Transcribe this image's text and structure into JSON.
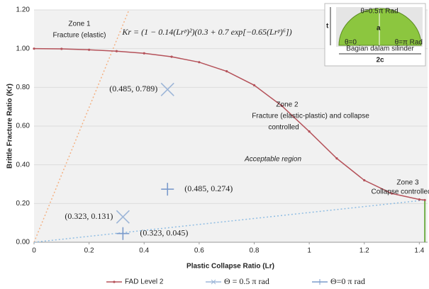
{
  "chart_data": {
    "type": "line",
    "xlabel": "Plastic Collapse Ratio (Lr)",
    "ylabel": "Brittle Fracture Ratio (Kr)",
    "formula": "Kr = (1 − 0.14(Lrᵖ)²)(0.3 + 0.7 exp[−0.65(Lrᵖ)⁶])",
    "xlim": [
      0,
      1.43
    ],
    "ylim": [
      0,
      1.2
    ],
    "xticks": [
      0,
      0.2,
      0.4,
      0.6,
      0.8,
      1,
      1.2,
      1.4
    ],
    "yticks": [
      {
        "value": 0,
        "label": "0.00"
      },
      {
        "value": 0.2,
        "label": "0.20"
      },
      {
        "value": 0.4,
        "label": "0.40"
      },
      {
        "value": 0.6,
        "label": "0.60"
      },
      {
        "value": 0.8,
        "label": "0.80"
      },
      {
        "value": 1,
        "label": "1.00"
      },
      {
        "value": 1.2,
        "label": "1.20"
      }
    ],
    "grid": true,
    "series": [
      {
        "name": "FAD Level 2",
        "color": "#b5525a",
        "marker": "dot",
        "x": [
          0,
          0.1,
          0.2,
          0.3,
          0.4,
          0.5,
          0.6,
          0.7,
          0.8,
          0.9,
          1,
          1.1,
          1.2,
          1.3,
          1.4,
          1.42
        ],
        "values": [
          1,
          0.999,
          0.994,
          0.987,
          0.976,
          0.958,
          0.93,
          0.883,
          0.811,
          0.705,
          0.572,
          0.433,
          0.32,
          0.252,
          0.221,
          0.218
        ]
      },
      {
        "name": "Θ = 0.5 π rad",
        "color": "#9db6d8",
        "marker": "x",
        "x": [
          0.485,
          0.323
        ],
        "values": [
          0.789,
          0.131
        ],
        "value_labels": [
          "(0.485, 0.789)",
          "(0.323, 0.131)"
        ]
      },
      {
        "name": "Θ=0 π rad",
        "color": "#7b9bcc",
        "marker": "plus",
        "x": [
          0.485,
          0.323
        ],
        "values": [
          0.274,
          0.045
        ],
        "value_labels": [
          "(0.485, 0.274)",
          "(0.323, 0.045)"
        ]
      }
    ],
    "reference_lines": [
      {
        "color": "#f4b183",
        "x": [
          0,
          0.345
        ],
        "values": [
          0,
          1.2
        ]
      },
      {
        "color": "#8fbde3",
        "x": [
          0,
          1.42
        ],
        "values": [
          0,
          0.218
        ]
      },
      {
        "color": "#70ad47",
        "x": [
          1.42,
          1.42
        ],
        "values": [
          0,
          0.218
        ]
      }
    ],
    "annotations": [
      "Zone 1",
      "Fracture (elastic)",
      "Zone 2",
      "Fracture (elastic-plastic) and collapse",
      "controlled",
      "Acceptable region",
      "Zone 3",
      "Collapse controlled"
    ],
    "inset": {
      "top_angle": "θ=0.5π Rad",
      "depth": "a",
      "thickness": "t",
      "left_angle": "θ=0",
      "right_angle": "θ=π Rad",
      "caption": "Bagian dalam silinder",
      "width": "2c"
    }
  }
}
